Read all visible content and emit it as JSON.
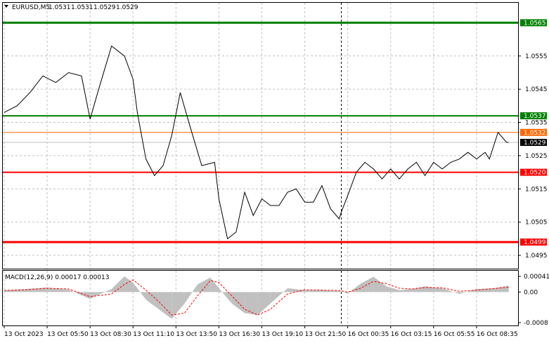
{
  "chart_data": [
    {
      "type": "line",
      "header": {
        "symbol": "EURUSD,M5",
        "ohlc": [
          "1.0531",
          "1.0531",
          "1.0529",
          "1.0529"
        ]
      },
      "colors": {
        "price": "#000000",
        "green_level": "#008000",
        "red_level": "#ff0000",
        "bid_line": "#ff6600",
        "grid": "#c0c0c0"
      },
      "ylim": [
        1.0491,
        1.0571
      ],
      "y_ticks": [
        "1.0555",
        "1.0545",
        "1.0535",
        "1.0525",
        "1.0515",
        "1.0505",
        "1.0495"
      ],
      "x_ticks": [
        "13 Oct 2023",
        "13 Oct 05:50",
        "13 Oct 08:30",
        "13 Oct 11:10",
        "13 Oct 13:50",
        "13 Oct 16:30",
        "13 Oct 19:10",
        "13 Oct 21:50",
        "16 Oct 00:35",
        "16 Oct 03:15",
        "16 Oct 05:55",
        "16 Oct 08:35"
      ],
      "session_break_index": 7.85,
      "levels": [
        {
          "price": 1.0565,
          "label": "1.0565",
          "kind": "green",
          "width": 3
        },
        {
          "price": 1.0537,
          "label": "1.0537",
          "kind": "green",
          "width": 2
        },
        {
          "price": 1.0532,
          "label": "1.0532",
          "kind": "orange",
          "width": 1
        },
        {
          "price": 1.052,
          "label": "1.0520",
          "kind": "red",
          "width": 2
        },
        {
          "price": 1.0499,
          "label": "1.0499",
          "kind": "red",
          "width": 3
        }
      ],
      "current_price": {
        "price": 1.0529,
        "label": "1.0529"
      },
      "series": [
        {
          "name": "",
          "x": [
            0,
            0.3,
            0.6,
            0.9,
            1.2,
            1.5,
            1.8,
            2.0,
            2.2,
            2.5,
            2.8,
            3.0,
            3.1,
            3.3,
            3.5,
            3.7,
            3.9,
            4.1,
            4.3,
            4.6,
            4.9,
            5.0,
            5.2,
            5.4,
            5.6,
            5.8,
            6.0,
            6.2,
            6.4,
            6.6,
            6.8,
            7.0,
            7.2,
            7.4,
            7.6,
            7.8,
            7.85,
            8.0,
            8.2,
            8.4,
            8.6,
            8.8,
            9.0,
            9.2,
            9.4,
            9.6,
            9.8,
            10.0,
            10.2,
            10.4,
            10.6,
            10.8,
            11.0,
            11.2,
            11.3,
            11.5,
            11.7,
            11.75
          ],
          "y": [
            1.0538,
            1.054,
            1.0544,
            1.0549,
            1.0547,
            1.055,
            1.0549,
            1.0536,
            1.0545,
            1.0558,
            1.0555,
            1.0548,
            1.0538,
            1.0524,
            1.0519,
            1.0522,
            1.0531,
            1.0544,
            1.0535,
            1.0522,
            1.0523,
            1.0512,
            1.05,
            1.0502,
            1.0514,
            1.0507,
            1.0512,
            1.051,
            1.051,
            1.0514,
            1.0515,
            1.0511,
            1.0511,
            1.0516,
            1.0509,
            1.0506,
            1.0508,
            1.0513,
            1.052,
            1.0523,
            1.0521,
            1.0518,
            1.0521,
            1.0518,
            1.0521,
            1.0523,
            1.0519,
            1.0523,
            1.0521,
            1.0523,
            1.0524,
            1.0526,
            1.0524,
            1.0526,
            1.0524,
            1.0532,
            1.0529,
            1.0529
          ]
        }
      ]
    },
    {
      "type": "bar",
      "title": "MACD(12,26,9) 0.00017 0.00013",
      "ylim": [
        -0.0008,
        0.00041
      ],
      "y_ticks": [
        "0.00041",
        "0.00",
        "-0.0008"
      ],
      "colors": {
        "histogram": "#c0c0c0",
        "signal": "#ff0000"
      },
      "series": [
        {
          "name": "",
          "x": [
            0,
            0.5,
            1.0,
            1.5,
            2.0,
            2.5,
            2.8,
            3.0,
            3.3,
            3.6,
            3.9,
            4.2,
            4.5,
            4.8,
            5.0,
            5.3,
            5.6,
            5.9,
            6.2,
            6.6,
            7.0,
            7.4,
            7.8,
            8.0,
            8.3,
            8.6,
            8.9,
            9.2,
            9.5,
            9.8,
            10.2,
            10.6,
            11.0,
            11.4,
            11.75
          ],
          "macd": [
            5e-05,
            8e-05,
            0.00012,
            6e-05,
            -0.00018,
            8e-05,
            0.00041,
            0.00025,
            -0.0002,
            -0.00045,
            -0.0007,
            -0.0003,
            0.0002,
            0.00038,
            0.0001,
            -0.0003,
            -0.00055,
            -0.0006,
            -0.0003,
            0.0001,
            5e-05,
            6e-05,
            3e-05,
            -4e-05,
            0.00022,
            0.0004,
            0.00015,
            5e-05,
            8e-05,
            0.00015,
            0.0001,
            -5e-05,
            8e-05,
            0.0001,
            0.00017
          ],
          "signal": [
            4e-05,
            6e-05,
            0.0001,
            8e-05,
            -0.00012,
            -5e-05,
            0.0002,
            0.00032,
            5e-05,
            -0.00025,
            -0.0006,
            -0.00055,
            -0.0001,
            0.0003,
            0.00025,
            -0.0001,
            -0.00045,
            -0.0006,
            -0.00045,
            -5e-05,
            6e-05,
            5e-05,
            4e-05,
            0.0,
            0.0001,
            0.00028,
            0.00022,
            0.0001,
            8e-05,
            0.00012,
            0.00011,
            2e-05,
            5e-05,
            9e-05,
            0.00013
          ]
        }
      ]
    }
  ]
}
